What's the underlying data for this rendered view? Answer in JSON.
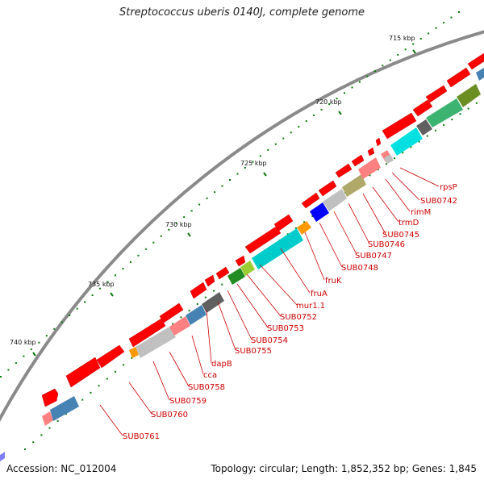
{
  "title": "Streptococcus uberis 0140J, complete genome",
  "footer": {
    "accession": "Accession: NC_012004",
    "topology": "Topology: circular; Length: 1,852,352 bp; Genes: 1,845"
  },
  "tick_labels": [
    "715 kbp",
    "720 kbp",
    "725 kbp",
    "730 kbp",
    "735 kbp",
    "740 kbp"
  ],
  "gene_labels": [
    "rpsP",
    "SUB0742",
    "rimM",
    "trmD",
    "SUB0745",
    "SUB0746",
    "SUB0747",
    "SUB0748",
    "fruK",
    "fruA",
    "mur1.1",
    "SUB0752",
    "SUB0753",
    "SUB0754",
    "SUB0755",
    "dapB",
    "cca",
    "SUB0758",
    "SUB0759",
    "SUB0760",
    "SUB0761"
  ],
  "colors": {
    "backbone": "#7a7a7a",
    "gene_arrow": "#ff0000",
    "tick": "#0a7a0a",
    "label": "#cc0000"
  },
  "cog_colors": [
    "#ff8080",
    "#c0c0c0",
    "#0000ff",
    "#b0a868",
    "#ff8080",
    "#00d0d0",
    "#ff9900",
    "#9acd32",
    "#228b22",
    "#c0c0c0",
    "#ff8080",
    "#4682b4",
    "#606060",
    "#ff9900",
    "#ff8080",
    "#4682b4",
    "#00e0e0",
    "#606060",
    "#3cb371",
    "#6b8e23",
    "#8fbc8f"
  ]
}
